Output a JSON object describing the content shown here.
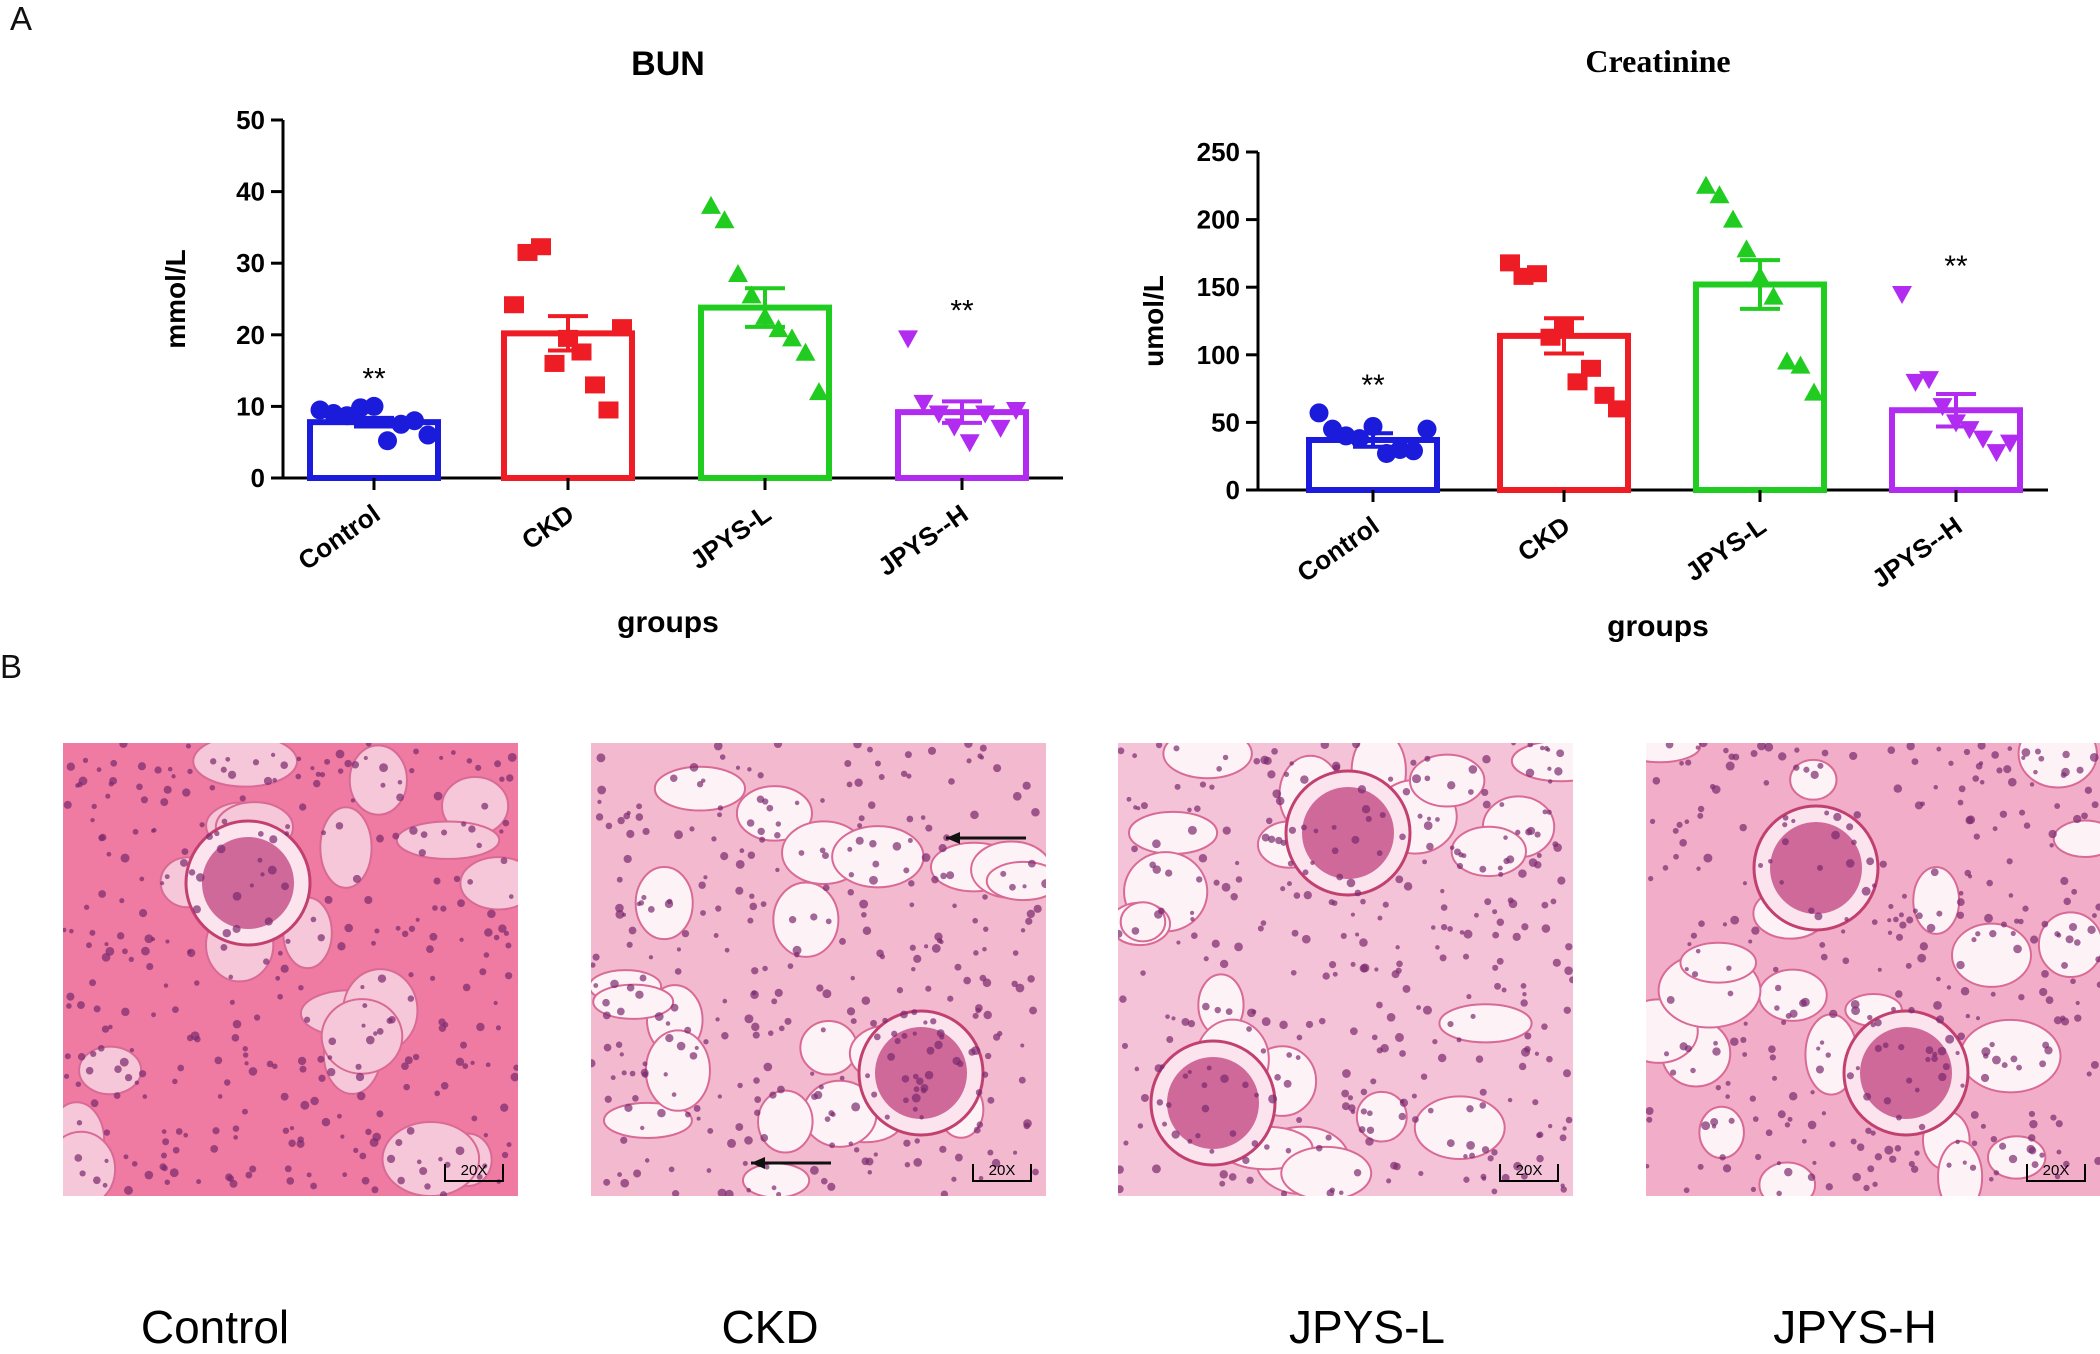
{
  "panel_labels": {
    "a": "A",
    "b": "B"
  },
  "colors": {
    "Control": "#1b1bdc",
    "CKD": "#ee1c24",
    "JPYS-L": "#21cc21",
    "JPYS--H": "#b12cf0"
  },
  "chart_data": [
    {
      "type": "bar",
      "title": "BUN",
      "xlabel": "groups",
      "ylabel": "mmol/L",
      "ylim": [
        0,
        50
      ],
      "yticks": [
        0,
        10,
        20,
        30,
        40,
        50
      ],
      "categories": [
        "Control",
        "CKD",
        "JPYS-L",
        "JPYS--H"
      ],
      "values": [
        7.8,
        20.2,
        23.8,
        9.2
      ],
      "sem": [
        0.6,
        2.4,
        2.7,
        1.5
      ],
      "significance": [
        "**",
        "",
        "",
        "**"
      ],
      "markers": [
        "circle",
        "square",
        "triangle-up",
        "triangle-down"
      ],
      "points": [
        [
          9.5,
          9.0,
          8.7,
          9.8,
          10.0,
          5.2,
          7.5,
          8.0,
          6.0
        ],
        [
          24.2,
          31.5,
          32.3,
          16.0,
          19.5,
          17.6,
          13.0,
          9.5,
          21.0
        ],
        [
          38.0,
          36.0,
          28.5,
          25.5,
          22.5,
          20.8,
          19.5,
          17.5,
          12.0
        ],
        [
          19.5,
          10.5,
          9.0,
          7.2,
          5.0,
          9.0,
          7.0,
          9.5
        ]
      ],
      "grid": false
    },
    {
      "type": "bar",
      "title": "Creatinine",
      "xlabel": "groups",
      "ylabel": "umol/L",
      "ylim": [
        0,
        250
      ],
      "yticks": [
        0,
        50,
        100,
        150,
        200,
        250
      ],
      "categories": [
        "Control",
        "CKD",
        "JPYS-L",
        "JPYS--H"
      ],
      "values": [
        37,
        114,
        152,
        59
      ],
      "sem": [
        5,
        13,
        18,
        12
      ],
      "significance": [
        "**",
        "",
        "",
        "**"
      ],
      "markers": [
        "circle",
        "square",
        "triangle-up",
        "triangle-down"
      ],
      "points": [
        [
          57,
          45,
          40,
          38,
          47,
          27,
          30,
          29,
          45
        ],
        [
          168,
          158,
          160,
          113,
          120,
          80,
          90,
          70,
          60
        ],
        [
          225,
          218,
          200,
          178,
          158,
          143,
          95,
          92,
          72
        ],
        [
          145,
          80,
          82,
          62,
          50,
          45,
          38,
          28,
          35
        ]
      ],
      "grid": false
    }
  ],
  "histology": {
    "images": [
      {
        "label": "Control",
        "scale": "20X",
        "tone": "#ef7aa2"
      },
      {
        "label": "CKD",
        "scale": "20X",
        "tone": "#f2b9cf"
      },
      {
        "label": "JPYS-L",
        "scale": "20X",
        "tone": "#f4c3d8"
      },
      {
        "label": "JPYS-H",
        "scale": "20X",
        "tone": "#f2aec8"
      }
    ]
  }
}
